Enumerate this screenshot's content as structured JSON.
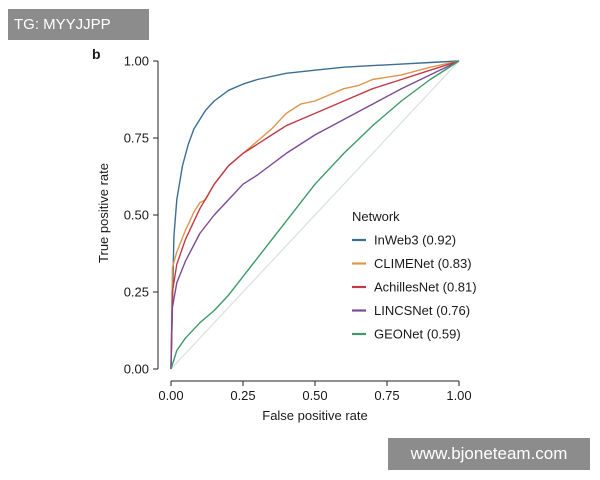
{
  "watermarks": {
    "top_left": "TG: MYYJJPP",
    "bottom_right": "www.bjoneteam.com"
  },
  "chart_data": {
    "type": "line",
    "panel_label": "b",
    "title": "",
    "xlabel": "False positive rate",
    "ylabel": "True positive rate",
    "xlim": [
      0,
      1
    ],
    "ylim": [
      0,
      1
    ],
    "xticks": [
      "0.00",
      "0.25",
      "0.50",
      "0.75",
      "1.00"
    ],
    "yticks": [
      "0.00",
      "0.25",
      "0.50",
      "0.75",
      "1.00"
    ],
    "grid": false,
    "diagonal_reference": true,
    "diagonal_color": "#d8e0e0",
    "legend": {
      "title": "Network",
      "placement": "lower-right"
    },
    "series": [
      {
        "name": "InWeb3 (0.92)",
        "color": "#3b6e93",
        "x": [
          0,
          0.01,
          0.02,
          0.04,
          0.06,
          0.08,
          0.1,
          0.12,
          0.15,
          0.2,
          0.25,
          0.3,
          0.4,
          0.5,
          0.6,
          0.7,
          0.8,
          0.9,
          1.0
        ],
        "y": [
          0,
          0.43,
          0.55,
          0.66,
          0.73,
          0.78,
          0.81,
          0.84,
          0.87,
          0.905,
          0.925,
          0.94,
          0.96,
          0.97,
          0.98,
          0.985,
          0.99,
          0.995,
          1.0
        ]
      },
      {
        "name": "CLIMENet (0.83)",
        "color": "#e0964a",
        "x": [
          0,
          0.005,
          0.02,
          0.05,
          0.08,
          0.1,
          0.12,
          0.15,
          0.2,
          0.25,
          0.3,
          0.35,
          0.4,
          0.45,
          0.5,
          0.55,
          0.6,
          0.65,
          0.7,
          0.8,
          0.9,
          1.0
        ],
        "y": [
          0,
          0.33,
          0.38,
          0.45,
          0.51,
          0.54,
          0.55,
          0.6,
          0.66,
          0.7,
          0.74,
          0.78,
          0.83,
          0.86,
          0.87,
          0.89,
          0.91,
          0.92,
          0.94,
          0.955,
          0.98,
          1.0
        ]
      },
      {
        "name": "AchillesNet (0.81)",
        "color": "#c23a48",
        "x": [
          0,
          0.005,
          0.02,
          0.05,
          0.08,
          0.1,
          0.15,
          0.2,
          0.25,
          0.3,
          0.35,
          0.4,
          0.45,
          0.5,
          0.6,
          0.7,
          0.8,
          0.9,
          1.0
        ],
        "y": [
          0,
          0.25,
          0.34,
          0.42,
          0.48,
          0.52,
          0.6,
          0.66,
          0.7,
          0.73,
          0.76,
          0.79,
          0.81,
          0.83,
          0.87,
          0.91,
          0.94,
          0.97,
          1.0
        ]
      },
      {
        "name": "LINCSNet (0.76)",
        "color": "#7b4a93",
        "x": [
          0,
          0.005,
          0.02,
          0.05,
          0.1,
          0.15,
          0.2,
          0.25,
          0.3,
          0.4,
          0.5,
          0.6,
          0.7,
          0.8,
          0.9,
          1.0
        ],
        "y": [
          0,
          0.2,
          0.28,
          0.35,
          0.44,
          0.5,
          0.55,
          0.6,
          0.63,
          0.7,
          0.76,
          0.81,
          0.86,
          0.91,
          0.955,
          1.0
        ]
      },
      {
        "name": "GEONet (0.59)",
        "color": "#3e9a68",
        "x": [
          0,
          0.02,
          0.05,
          0.1,
          0.15,
          0.2,
          0.25,
          0.3,
          0.35,
          0.4,
          0.5,
          0.6,
          0.7,
          0.8,
          0.9,
          1.0
        ],
        "y": [
          0,
          0.06,
          0.1,
          0.15,
          0.19,
          0.24,
          0.3,
          0.36,
          0.42,
          0.48,
          0.6,
          0.7,
          0.79,
          0.87,
          0.94,
          1.0
        ]
      }
    ]
  }
}
